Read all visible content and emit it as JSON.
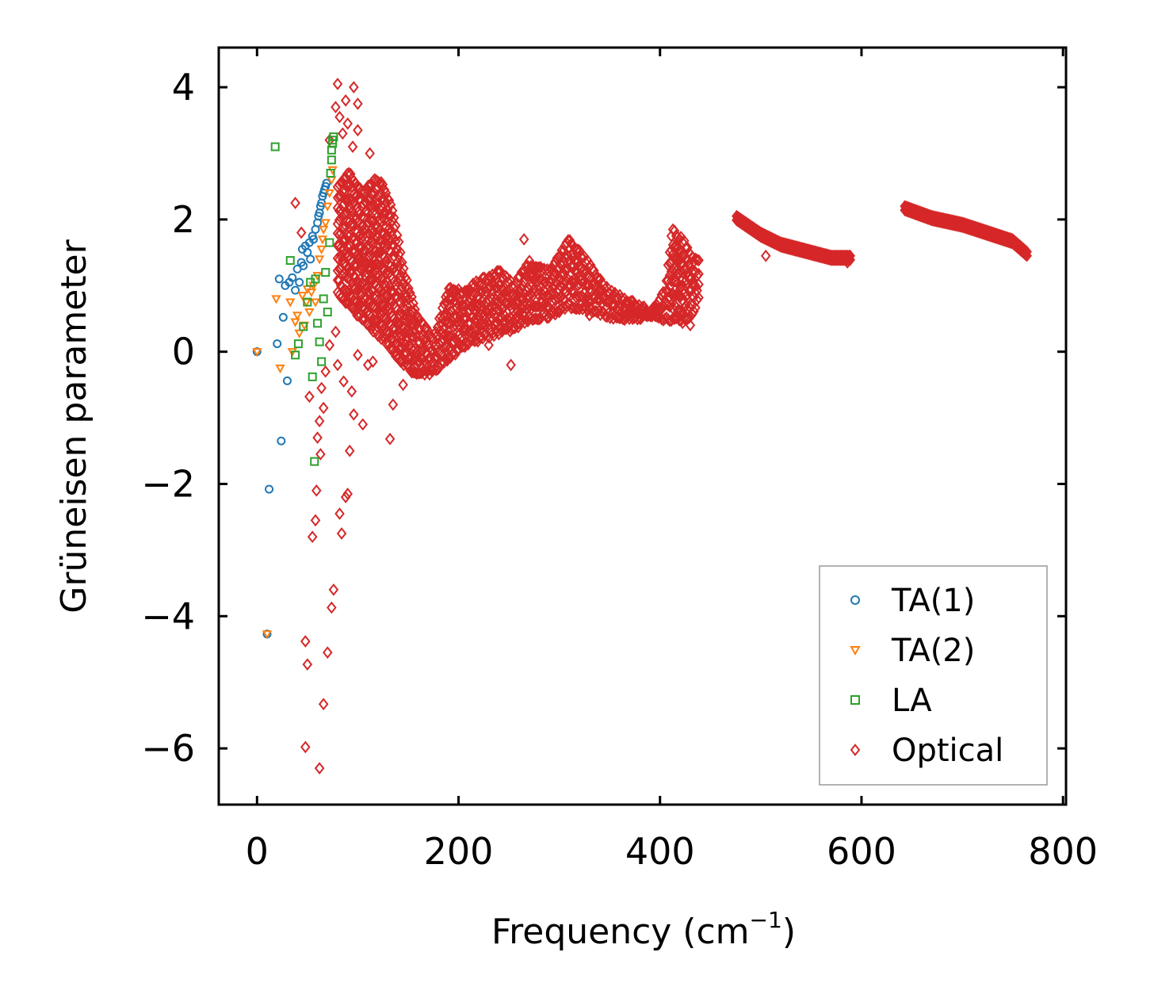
{
  "chart_data": {
    "type": "scatter",
    "title": "",
    "xlabel": "Frequency (cm",
    "xlabel_sup": "−1",
    "xlabel_end": ")",
    "ylabel": "Grüneisen parameter",
    "xlim": [
      -38,
      803
    ],
    "ylim": [
      -6.85,
      4.6
    ],
    "xticks": [
      0,
      200,
      400,
      600,
      800
    ],
    "yticks": [
      -6,
      -4,
      -2,
      0,
      2,
      4
    ],
    "xtick_labels": [
      "0",
      "200",
      "400",
      "600",
      "800"
    ],
    "ytick_labels": [
      "−6",
      "−4",
      "−2",
      "0",
      "2",
      "4"
    ],
    "legend_position": "lower-right",
    "series": [
      {
        "name": "TA(1)",
        "marker": "circle",
        "color": "#1f77b4",
        "points": [
          [
            0,
            0
          ],
          [
            10,
            -4.27
          ],
          [
            12,
            -2.08
          ],
          [
            20,
            0.12
          ],
          [
            22,
            1.1
          ],
          [
            24,
            -1.35
          ],
          [
            26,
            0.52
          ],
          [
            28,
            1.0
          ],
          [
            30,
            -0.44
          ],
          [
            32,
            1.05
          ],
          [
            35,
            1.12
          ],
          [
            38,
            0.93
          ],
          [
            40,
            1.25
          ],
          [
            42,
            1.05
          ],
          [
            44,
            1.35
          ],
          [
            45,
            1.55
          ],
          [
            46,
            1.3
          ],
          [
            48,
            1.6
          ],
          [
            50,
            1.5
          ],
          [
            52,
            1.65
          ],
          [
            53,
            1.4
          ],
          [
            55,
            1.75
          ],
          [
            56,
            1.7
          ],
          [
            58,
            1.85
          ],
          [
            60,
            1.95
          ],
          [
            61,
            2.05
          ],
          [
            62,
            2.1
          ],
          [
            63,
            2.2
          ],
          [
            64,
            2.25
          ],
          [
            65,
            2.35
          ],
          [
            66,
            2.4
          ],
          [
            67,
            2.45
          ],
          [
            68,
            2.5
          ],
          [
            69,
            2.55
          ]
        ]
      },
      {
        "name": "TA(2)",
        "marker": "triangle-down",
        "color": "#ff7f0e",
        "points": [
          [
            0,
            0
          ],
          [
            10,
            -4.27
          ],
          [
            19,
            0.8
          ],
          [
            23,
            -0.25
          ],
          [
            33,
            0.75
          ],
          [
            35,
            0.0
          ],
          [
            38,
            0.45
          ],
          [
            40,
            0.55
          ],
          [
            42,
            0.28
          ],
          [
            45,
            0.85
          ],
          [
            47,
            0.4
          ],
          [
            49,
            0.75
          ],
          [
            50,
            0.95
          ],
          [
            52,
            0.6
          ],
          [
            54,
            0.9
          ],
          [
            56,
            1.0
          ],
          [
            58,
            0.75
          ],
          [
            60,
            1.15
          ],
          [
            62,
            1.4
          ],
          [
            64,
            1.55
          ],
          [
            65,
            1.7
          ],
          [
            66,
            1.85
          ],
          [
            68,
            1.95
          ],
          [
            70,
            2.2
          ],
          [
            72,
            2.4
          ],
          [
            74,
            2.6
          ],
          [
            75,
            2.75
          ]
        ]
      },
      {
        "name": "LA",
        "marker": "square",
        "color": "#2ca02c",
        "points": [
          [
            18,
            3.1
          ],
          [
            33,
            1.38
          ],
          [
            38,
            -0.05
          ],
          [
            41,
            0.12
          ],
          [
            46,
            0.38
          ],
          [
            50,
            0.75
          ],
          [
            53,
            1.05
          ],
          [
            55,
            -0.38
          ],
          [
            57,
            -1.66
          ],
          [
            58,
            1.1
          ],
          [
            60,
            0.43
          ],
          [
            62,
            0.15
          ],
          [
            64,
            -0.15
          ],
          [
            66,
            0.8
          ],
          [
            68,
            1.2
          ],
          [
            70,
            0.6
          ],
          [
            72,
            1.65
          ],
          [
            73,
            2.7
          ],
          [
            74,
            2.9
          ],
          [
            74,
            3.05
          ],
          [
            75,
            3.15
          ],
          [
            75,
            3.2
          ],
          [
            76,
            3.25
          ]
        ]
      },
      {
        "name": "Optical",
        "marker": "diamond",
        "color": "#d62728",
        "dense": [
          [
            80,
            2.5
          ],
          [
            92,
            2.7
          ],
          [
            104,
            2.4
          ],
          [
            118,
            2.6
          ],
          [
            126,
            2.5
          ],
          [
            135,
            2.1
          ],
          [
            146,
            1.2
          ],
          [
            160,
            0.5
          ],
          [
            175,
            0.2
          ],
          [
            190,
            0.95
          ],
          [
            205,
            0.9
          ],
          [
            220,
            1.05
          ],
          [
            240,
            1.2
          ],
          [
            255,
            1.0
          ],
          [
            270,
            1.35
          ],
          [
            290,
            1.2
          ],
          [
            310,
            1.7
          ],
          [
            330,
            1.3
          ],
          [
            350,
            0.9
          ],
          [
            370,
            0.75
          ],
          [
            390,
            0.6
          ],
          [
            405,
            0.9
          ],
          [
            412,
            1.85
          ],
          [
            422,
            1.7
          ],
          [
            432,
            1.4
          ],
          [
            440,
            1.35
          ]
        ],
        "dense_low": [
          [
            80,
            0.9
          ],
          [
            92,
            0.7
          ],
          [
            104,
            0.5
          ],
          [
            118,
            0.3
          ],
          [
            126,
            0.2
          ],
          [
            135,
            0.0
          ],
          [
            146,
            -0.2
          ],
          [
            160,
            -0.35
          ],
          [
            175,
            -0.3
          ],
          [
            190,
            -0.1
          ],
          [
            205,
            0.1
          ],
          [
            220,
            0.2
          ],
          [
            240,
            0.3
          ],
          [
            255,
            0.35
          ],
          [
            270,
            0.5
          ],
          [
            290,
            0.55
          ],
          [
            310,
            0.7
          ],
          [
            330,
            0.65
          ],
          [
            350,
            0.55
          ],
          [
            370,
            0.5
          ],
          [
            390,
            0.55
          ],
          [
            405,
            0.5
          ],
          [
            412,
            0.5
          ],
          [
            422,
            0.45
          ],
          [
            432,
            0.55
          ],
          [
            440,
            0.9
          ]
        ],
        "ridges": [
          [
            [
              476,
              2.05
            ],
            [
              500,
              1.8
            ],
            [
              520,
              1.65
            ],
            [
              545,
              1.55
            ],
            [
              570,
              1.45
            ],
            [
              590,
              1.45
            ]
          ],
          [
            [
              643,
              2.2
            ],
            [
              670,
              2.05
            ],
            [
              700,
              1.95
            ],
            [
              730,
              1.8
            ],
            [
              750,
              1.7
            ],
            [
              765,
              1.5
            ]
          ]
        ],
        "scatter": [
          [
            48,
            -5.98
          ],
          [
            48,
            -4.38
          ],
          [
            50,
            -4.73
          ],
          [
            52,
            -0.68
          ],
          [
            55,
            -2.8
          ],
          [
            58,
            -2.55
          ],
          [
            59,
            -2.1
          ],
          [
            60,
            -1.3
          ],
          [
            62,
            -6.3
          ],
          [
            62,
            -1.05
          ],
          [
            63,
            -1.55
          ],
          [
            64,
            -0.55
          ],
          [
            66,
            -5.33
          ],
          [
            66,
            -0.85
          ],
          [
            68,
            -0.3
          ],
          [
            70,
            -4.55
          ],
          [
            72,
            0.1
          ],
          [
            74,
            -3.87
          ],
          [
            76,
            -3.6
          ],
          [
            78,
            0.3
          ],
          [
            80,
            -0.2
          ],
          [
            82,
            -2.45
          ],
          [
            84,
            -2.75
          ],
          [
            86,
            -0.45
          ],
          [
            88,
            -2.2
          ],
          [
            90,
            -2.15
          ],
          [
            92,
            -1.5
          ],
          [
            94,
            -0.6
          ],
          [
            96,
            -0.95
          ],
          [
            100,
            -0.05
          ],
          [
            105,
            -1.1
          ],
          [
            110,
            -0.2
          ],
          [
            115,
            -0.15
          ],
          [
            125,
            0.3
          ],
          [
            132,
            -1.32
          ],
          [
            135,
            -0.8
          ],
          [
            145,
            -0.5
          ],
          [
            160,
            -0.15
          ],
          [
            168,
            -0.25
          ],
          [
            230,
            0.1
          ],
          [
            252,
            -0.2
          ],
          [
            265,
            1.7
          ],
          [
            300,
            0.6
          ],
          [
            330,
            0.55
          ],
          [
            380,
            0.5
          ],
          [
            420,
            0.95
          ],
          [
            430,
            0.4
          ],
          [
            505,
            1.45
          ],
          [
            575,
            1.4
          ],
          [
            586,
            1.35
          ],
          [
            38,
            2.25
          ],
          [
            44,
            1.8
          ],
          [
            80,
            4.05
          ],
          [
            96,
            4.0
          ],
          [
            100,
            3.75
          ],
          [
            88,
            3.8
          ],
          [
            95,
            3.1
          ],
          [
            112,
            3.0
          ],
          [
            85,
            3.3
          ],
          [
            78,
            3.7
          ],
          [
            82,
            3.55
          ],
          [
            90,
            3.45
          ],
          [
            100,
            3.35
          ],
          [
            72,
            3.2
          ]
        ]
      }
    ]
  }
}
